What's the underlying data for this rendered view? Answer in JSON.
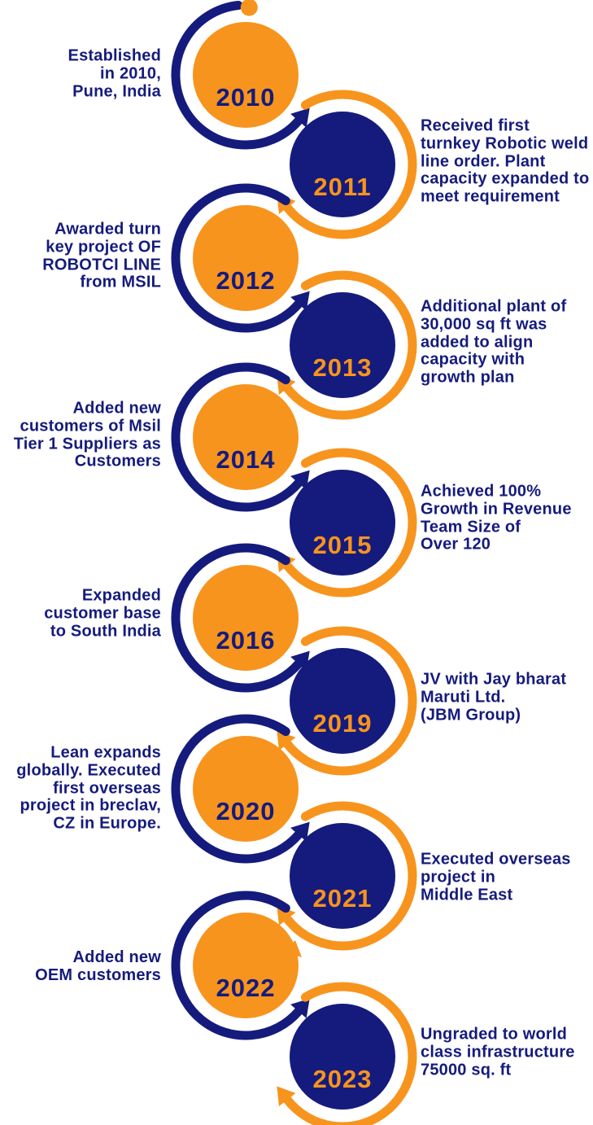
{
  "colors": {
    "orange": "#F7941E",
    "navy": "#151B7C"
  },
  "timeline": {
    "items": [
      {
        "year": "2010",
        "side": "left",
        "circle": "orange",
        "text": "Established\nin 2010,\nPune, India"
      },
      {
        "year": "2011",
        "side": "right",
        "circle": "navy",
        "text": "Received first\nturnkey Robotic weld\nline order. Plant\ncapacity expanded to\nmeet requirement"
      },
      {
        "year": "2012",
        "side": "left",
        "circle": "orange",
        "text": "Awarded turn\nkey project OF\nROBOTCI LINE\nfrom MSIL"
      },
      {
        "year": "2013",
        "side": "right",
        "circle": "navy",
        "text": "Additional plant of\n30,000 sq ft was\nadded to align\ncapacity with\ngrowth plan"
      },
      {
        "year": "2014",
        "side": "left",
        "circle": "orange",
        "text": "Added new\ncustomers of Msil\nTier 1 Suppliers as\nCustomers"
      },
      {
        "year": "2015",
        "side": "right",
        "circle": "navy",
        "text": "Achieved 100%\nGrowth in Revenue\nTeam Size of\nOver 120"
      },
      {
        "year": "2016",
        "side": "left",
        "circle": "orange",
        "text": "Expanded\ncustomer base\nto South India"
      },
      {
        "year": "2019",
        "side": "right",
        "circle": "navy",
        "text": "JV with Jay bharat\nMaruti Ltd.\n(JBM Group)"
      },
      {
        "year": "2020",
        "side": "left",
        "circle": "orange",
        "text": "Lean expands\nglobally. Executed\nfirst overseas\nproject in breclav,\nCZ in Europe."
      },
      {
        "year": "2021",
        "side": "right",
        "circle": "navy",
        "text": "Executed overseas\nproject in\nMiddle East"
      },
      {
        "year": "2022",
        "side": "left",
        "circle": "orange",
        "text": "Added new\nOEM customers"
      },
      {
        "year": "2023",
        "side": "right",
        "circle": "navy",
        "text": "Ungraded to world\nclass infrastructure\n75000 sq. ft"
      }
    ]
  }
}
